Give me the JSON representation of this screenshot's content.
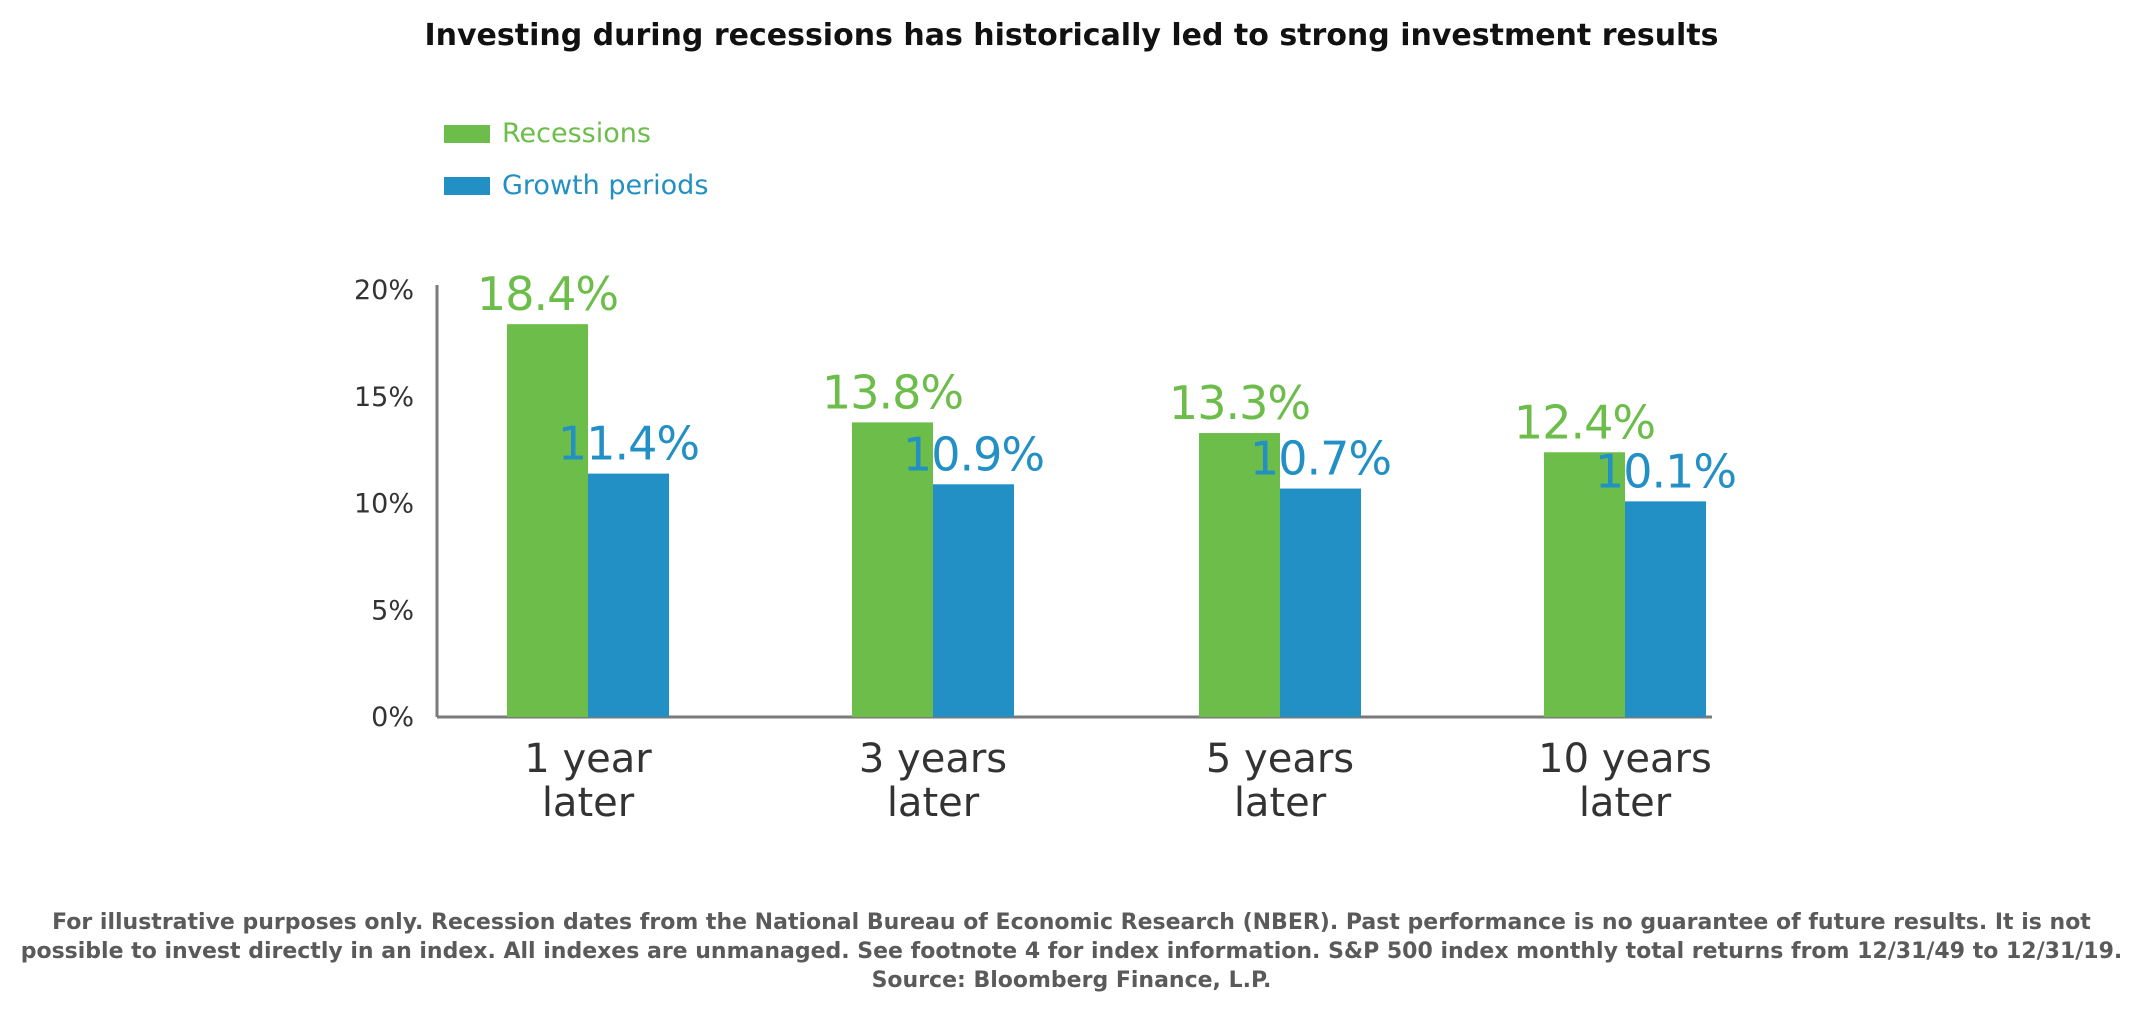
{
  "title": "Investing during recessions has historically led to strong investment results",
  "legend": [
    {
      "label": "Recessions",
      "color": "#6cbd4a"
    },
    {
      "label": "Growth periods",
      "color": "#2290c5"
    }
  ],
  "chart_data": {
    "type": "bar",
    "categories": [
      [
        "1 year",
        "later"
      ],
      [
        "3 years",
        "later"
      ],
      [
        "5 years",
        "later"
      ],
      [
        "10 years",
        "later"
      ]
    ],
    "series": [
      {
        "name": "Recessions",
        "color": "#6cbd4a",
        "values": [
          18.4,
          13.8,
          13.3,
          12.4
        ],
        "labels": [
          "18.4%",
          "13.8%",
          "13.3%",
          "12.4%"
        ]
      },
      {
        "name": "Growth periods",
        "color": "#2290c5",
        "values": [
          11.4,
          10.9,
          10.7,
          10.1
        ],
        "labels": [
          "11.4%",
          "10.9%",
          "10.7%",
          "10.1%"
        ]
      }
    ],
    "yticks": [
      {
        "value": 0,
        "label": "0%"
      },
      {
        "value": 5,
        "label": "5%"
      },
      {
        "value": 10,
        "label": "10%"
      },
      {
        "value": 15,
        "label": "15%"
      },
      {
        "value": 20,
        "label": "20%"
      }
    ],
    "ylim": [
      0,
      20
    ],
    "grid": false,
    "legend_position": "top-left"
  },
  "footnote": "For illustrative purposes only. Recession dates from the National Bureau of Economic Research (NBER). Past performance is no guarantee of future results. It is not possible to invest directly in an index. All indexes are unmanaged. See footnote 4 for index information. S&P 500 index monthly total returns from 12/31/49 to 12/31/19. Source: Bloomberg Finance, L.P."
}
